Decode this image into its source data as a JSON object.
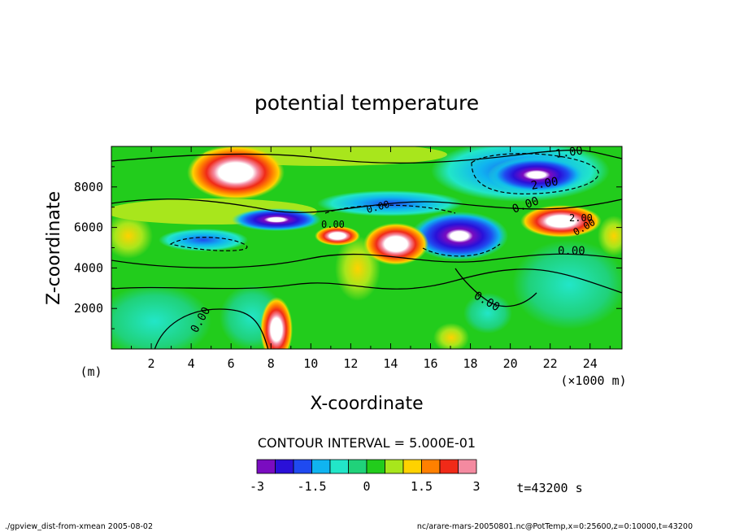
{
  "chart_data": {
    "type": "heatmap",
    "title": "potential temperature",
    "xlabel": "X-coordinate",
    "ylabel": "Z-coordinate",
    "x_unit_note": "(×1000 m)",
    "y_unit_note": "(m)",
    "x_ticks": [
      "2",
      "4",
      "6",
      "8",
      "10",
      "12",
      "14",
      "16",
      "18",
      "20",
      "22",
      "24"
    ],
    "x_tick_values": [
      2,
      4,
      6,
      8,
      10,
      12,
      14,
      16,
      18,
      20,
      22,
      24
    ],
    "y_ticks": [
      "2000",
      "4000",
      "6000",
      "8000"
    ],
    "y_tick_values": [
      2000,
      4000,
      6000,
      8000
    ],
    "xlim": [
      0,
      25.6
    ],
    "ylim": [
      0,
      10000
    ],
    "contour_interval_text": "CONTOUR INTERVAL = 5.000E-01",
    "contour_labels": [
      "1.00",
      "2.00",
      "0.00",
      "0.00",
      "0.00",
      "0.00",
      "0.00",
      "0.00",
      "2.00",
      "0.00"
    ],
    "colorbar": {
      "levels": [
        -3,
        -2.5,
        -2,
        -1.5,
        -1,
        -0.5,
        0,
        0.5,
        1,
        1.5,
        2,
        2.5,
        3
      ],
      "tick_labels": [
        "-3",
        "-1.5",
        "0",
        "1.5",
        "3"
      ],
      "tick_values": [
        -3,
        -1.5,
        0,
        1.5,
        3
      ],
      "colors": [
        "#7a0cc0",
        "#2a10d8",
        "#1f4af0",
        "#10b4f0",
        "#22e6c8",
        "#20d27a",
        "#22cc1c",
        "#a8e61c",
        "#ffd200",
        "#ff8000",
        "#f02a18",
        "#f48aa0"
      ]
    },
    "time_label": "t=43200 s",
    "grid": false,
    "legend": "bottom-center"
  },
  "footer": {
    "left": "./gpview_dist-from-xmean  2005-08-02",
    "right": "nc/arare-mars-20050801.nc@PotTemp,x=0:25600,z=0:10000,t=43200"
  }
}
